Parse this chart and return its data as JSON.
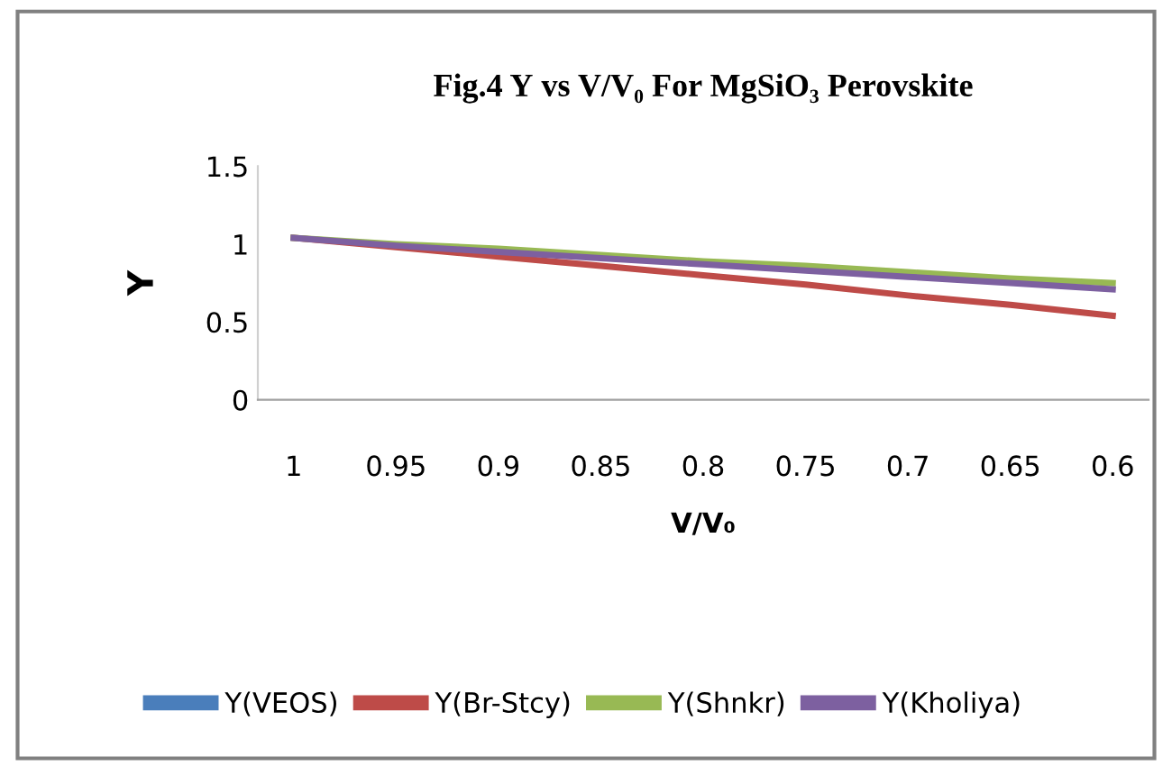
{
  "chart_data": {
    "type": "line",
    "title": "Fig.4 Υ vs V/V₀ For MgSiO₃ Perovskite",
    "xlabel": "V/V₀",
    "ylabel": "Υ",
    "categories": [
      "1",
      "0.95",
      "0.9",
      "0.85",
      "0.8",
      "0.75",
      "0.7",
      "0.65",
      "0.6"
    ],
    "series": [
      {
        "name": "Υ(VEOS)",
        "color": "#4a7ebb",
        "values": [
          null,
          null,
          null,
          null,
          null,
          null,
          null,
          null,
          null
        ]
      },
      {
        "name": "Υ(Br-Stcy)",
        "color": "#be4b48",
        "values": [
          1.04,
          0.98,
          0.92,
          0.86,
          0.8,
          0.74,
          0.67,
          0.61,
          0.54
        ]
      },
      {
        "name": "Υ(Shnkr)",
        "color": "#98b954",
        "values": [
          1.04,
          1.0,
          0.97,
          0.93,
          0.89,
          0.86,
          0.82,
          0.78,
          0.75
        ]
      },
      {
        "name": "Υ(Kholiya)",
        "color": "#7d60a0",
        "values": [
          1.04,
          0.99,
          0.95,
          0.91,
          0.87,
          0.83,
          0.79,
          0.75,
          0.71
        ]
      }
    ],
    "ylim": [
      0,
      1.5
    ],
    "yticks": [
      0,
      0.5,
      1,
      1.5
    ],
    "grid": false,
    "legend": "bottom",
    "marker": "none",
    "line_style": "solid"
  }
}
